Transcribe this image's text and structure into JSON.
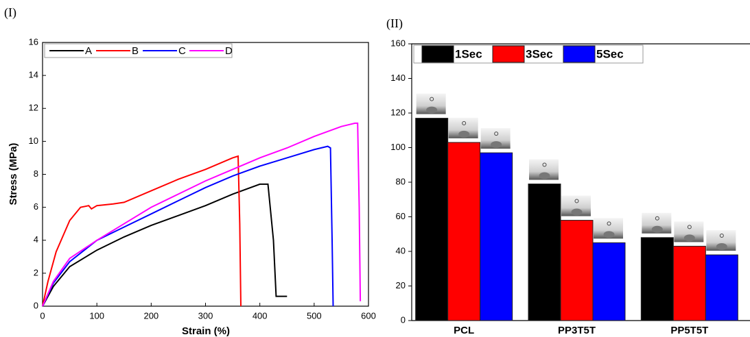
{
  "chart_data": [
    {
      "type": "line",
      "panel_label": "(I)",
      "xlabel": "Strain (%)",
      "ylabel": "Stress (MPa)",
      "xlim": [
        0,
        600
      ],
      "ylim": [
        0,
        16
      ],
      "xticks": [
        0,
        100,
        200,
        300,
        400,
        500,
        600
      ],
      "yticks": [
        0,
        2,
        4,
        6,
        8,
        10,
        12,
        14,
        16
      ],
      "legend": "top-left",
      "series": [
        {
          "name": "A",
          "color": "#000000",
          "x": [
            0,
            20,
            50,
            100,
            150,
            200,
            250,
            300,
            350,
            400,
            415,
            425,
            430,
            450
          ],
          "values": [
            0,
            1.2,
            2.4,
            3.4,
            4.2,
            4.9,
            5.5,
            6.1,
            6.8,
            7.4,
            7.4,
            4,
            0.6,
            0.6
          ]
        },
        {
          "name": "B",
          "color": "#ff0000",
          "x": [
            0,
            10,
            25,
            50,
            70,
            85,
            90,
            100,
            130,
            150,
            200,
            250,
            300,
            350,
            360,
            363,
            365
          ],
          "values": [
            0,
            1.5,
            3.3,
            5.2,
            6,
            6.1,
            5.9,
            6.1,
            6.2,
            6.3,
            7,
            7.7,
            8.3,
            9,
            9.1,
            5,
            0
          ]
        },
        {
          "name": "C",
          "color": "#0000ff",
          "x": [
            0,
            20,
            50,
            100,
            150,
            200,
            250,
            300,
            350,
            400,
            450,
            500,
            525,
            530,
            533,
            535
          ],
          "values": [
            0,
            1.4,
            2.7,
            4,
            4.8,
            5.6,
            6.4,
            7.2,
            7.9,
            8.5,
            9,
            9.5,
            9.7,
            9.6,
            4,
            0
          ]
        },
        {
          "name": "D",
          "color": "#ff00ff",
          "x": [
            0,
            20,
            50,
            100,
            150,
            200,
            250,
            300,
            350,
            400,
            450,
            500,
            550,
            575,
            580,
            583,
            585
          ],
          "values": [
            0,
            1.5,
            2.9,
            4,
            5,
            6,
            6.8,
            7.6,
            8.3,
            9,
            9.6,
            10.3,
            10.9,
            11.1,
            11.1,
            6,
            0.3
          ]
        }
      ]
    },
    {
      "type": "bar",
      "panel_label": "(II)",
      "categories": [
        "PCL",
        "PP3T5T",
        "PP5T5T"
      ],
      "ylim": [
        0,
        160
      ],
      "yticks": [
        0,
        20,
        40,
        60,
        80,
        100,
        120,
        140,
        160
      ],
      "legend": "top-left",
      "series": [
        {
          "name": "1Sec",
          "color": "#000000",
          "values": [
            117,
            79,
            48
          ]
        },
        {
          "name": "3Sec",
          "color": "#ff0000",
          "values": [
            103,
            58,
            43
          ]
        },
        {
          "name": "5Sec",
          "color": "#0000ff",
          "values": [
            97,
            45,
            38
          ]
        }
      ]
    }
  ]
}
